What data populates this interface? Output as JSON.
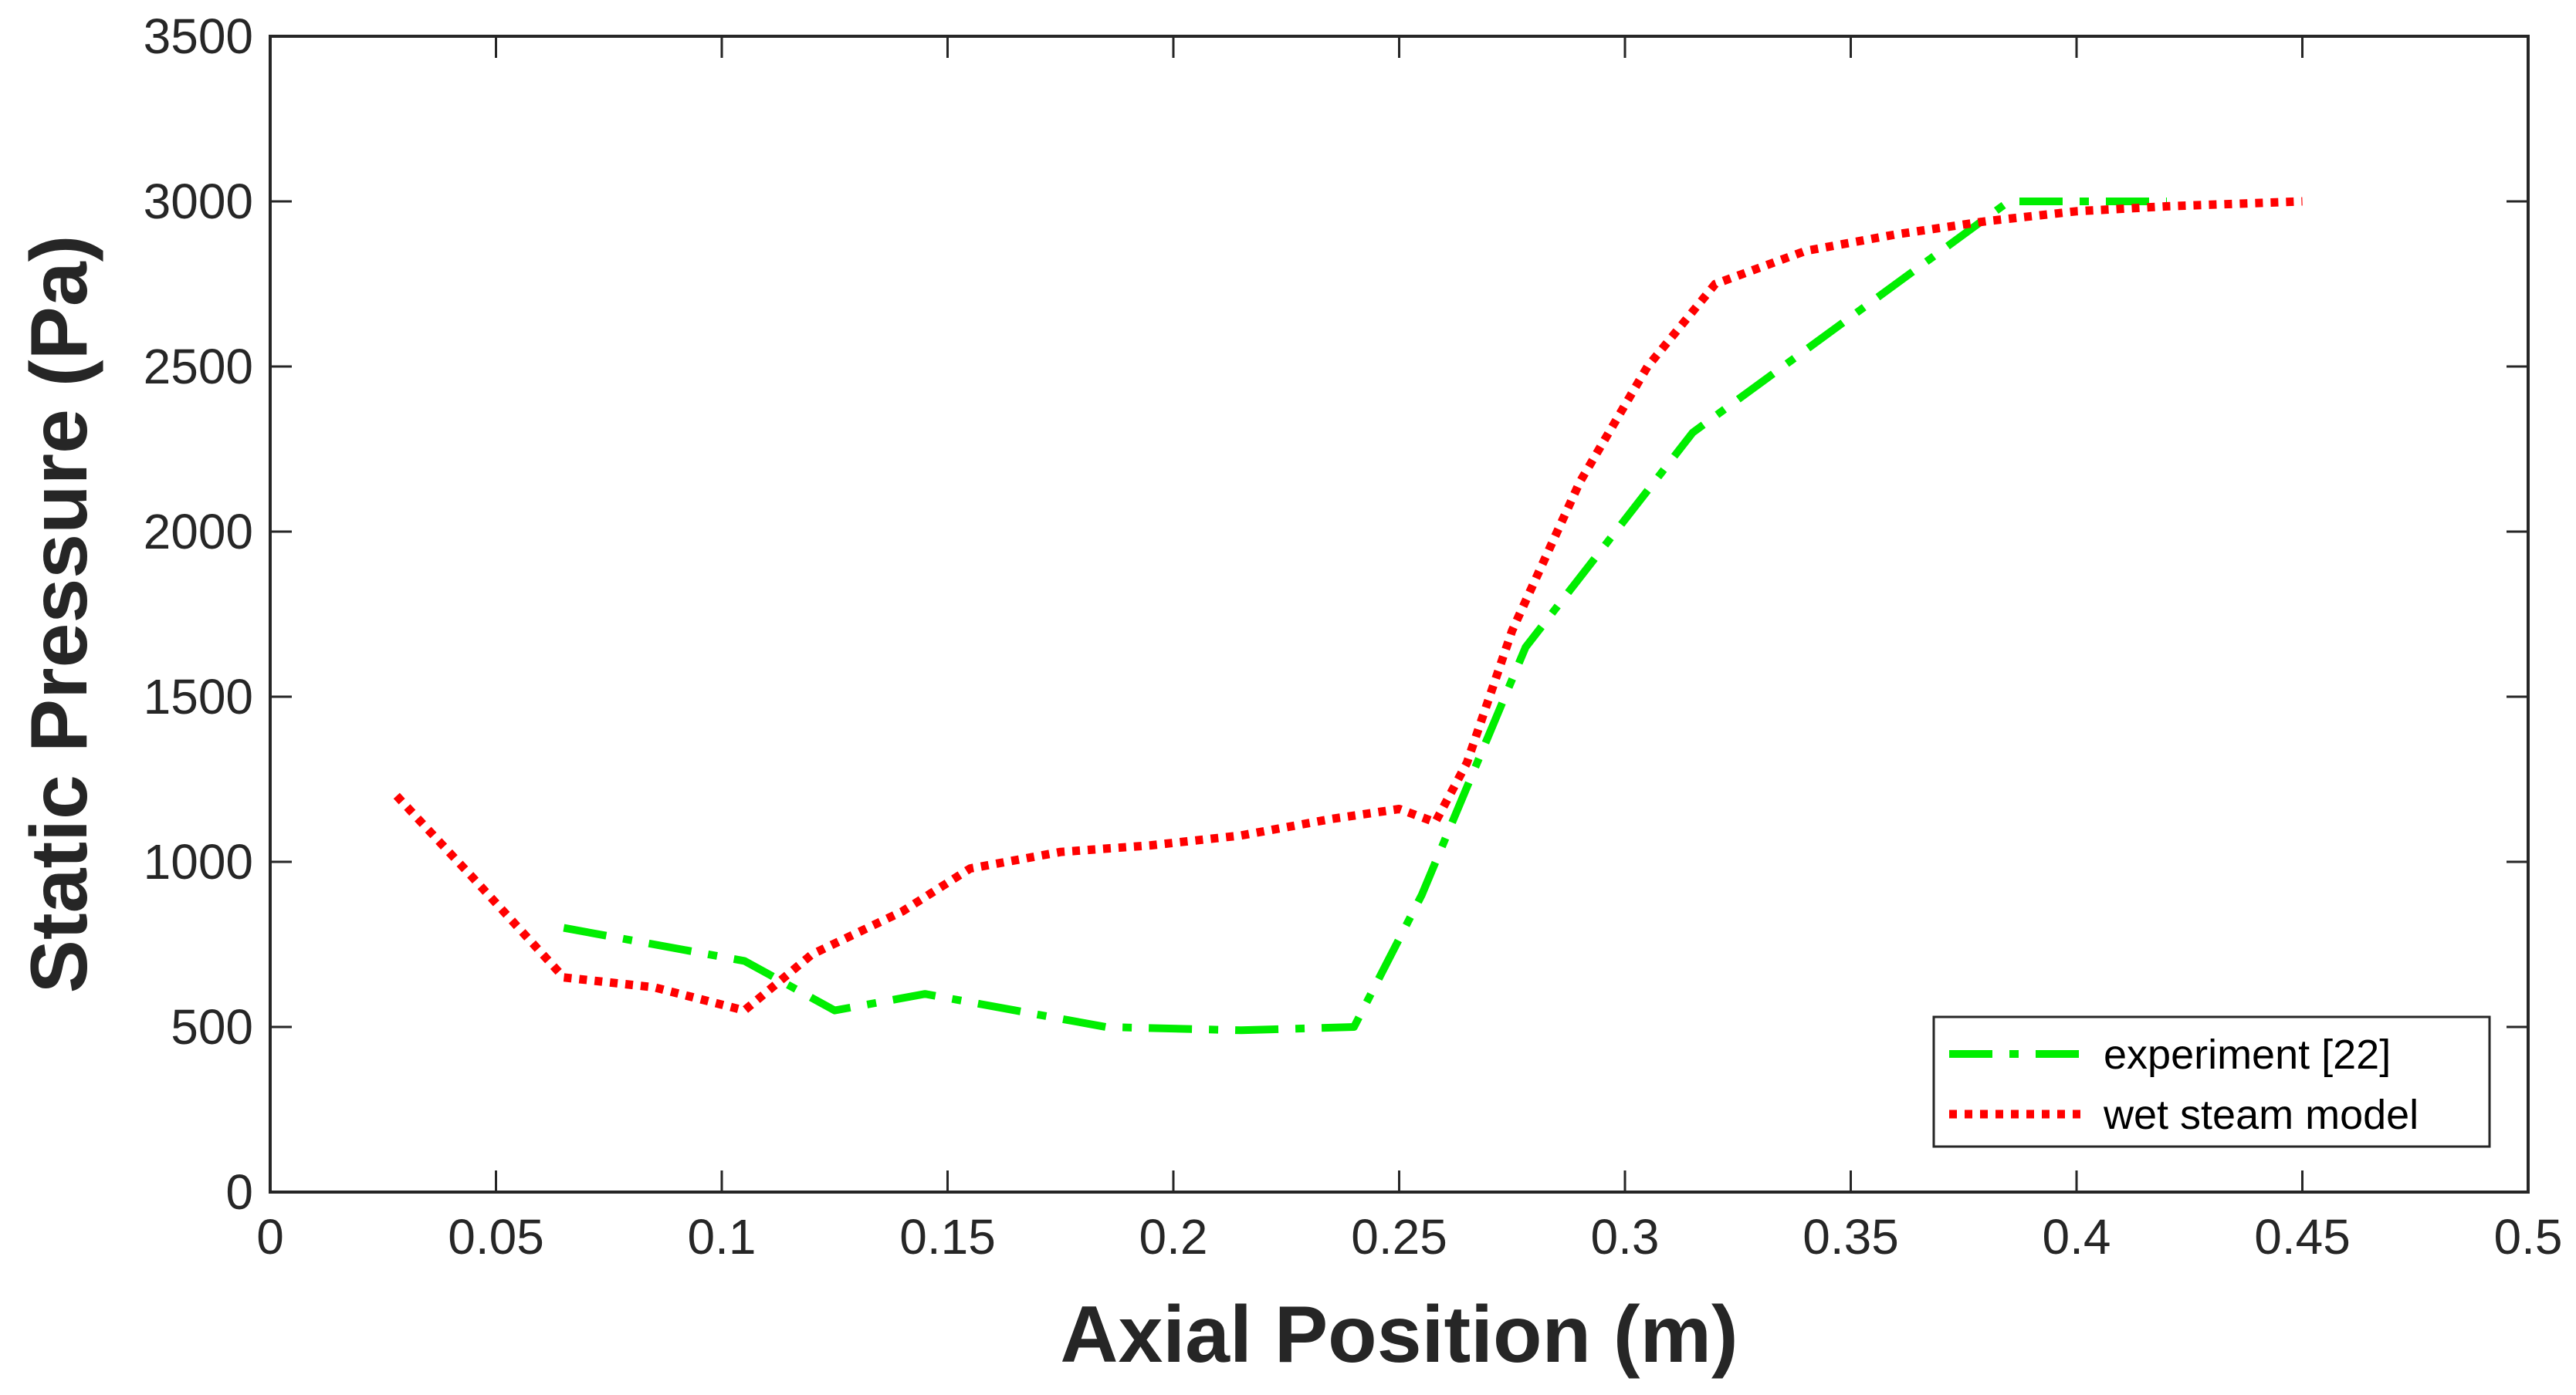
{
  "chart_data": {
    "type": "line",
    "title": "",
    "xlabel": "Axial Position (m)",
    "ylabel": "Static Pressure (Pa)",
    "xlim": [
      0,
      0.5
    ],
    "ylim": [
      0,
      3500
    ],
    "xticks": [
      0,
      0.05,
      0.1,
      0.15,
      0.2,
      0.25,
      0.3,
      0.35,
      0.4,
      0.45,
      0.5
    ],
    "xtick_labels": [
      "0",
      "0.05",
      "0.1",
      "0.15",
      "0.2",
      "0.25",
      "0.3",
      "0.35",
      "0.4",
      "0.45",
      "0.5"
    ],
    "yticks": [
      0,
      500,
      1000,
      1500,
      2000,
      2500,
      3000,
      3500
    ],
    "ytick_labels": [
      "0",
      "500",
      "1000",
      "1500",
      "2000",
      "2500",
      "3000",
      "3500"
    ],
    "grid": false,
    "legend_position": "bottom-right",
    "series": [
      {
        "name": "experiment [22]",
        "style": "dash-dot",
        "color": "#00ee00",
        "x": [
          0.065,
          0.105,
          0.125,
          0.145,
          0.165,
          0.185,
          0.215,
          0.24,
          0.255,
          0.278,
          0.315,
          0.35,
          0.385,
          0.42
        ],
        "y": [
          800,
          700,
          550,
          600,
          550,
          500,
          490,
          500,
          900,
          1650,
          2300,
          2650,
          3000,
          3000
        ]
      },
      {
        "name": "wet steam model",
        "style": "dotted",
        "color": "#ff0000",
        "x": [
          0.028,
          0.045,
          0.065,
          0.085,
          0.105,
          0.12,
          0.14,
          0.155,
          0.175,
          0.195,
          0.215,
          0.235,
          0.25,
          0.258,
          0.265,
          0.275,
          0.29,
          0.305,
          0.32,
          0.34,
          0.36,
          0.38,
          0.4,
          0.42,
          0.45
        ],
        "y": [
          1200,
          950,
          650,
          620,
          550,
          720,
          850,
          980,
          1030,
          1050,
          1080,
          1130,
          1160,
          1120,
          1300,
          1700,
          2150,
          2500,
          2750,
          2850,
          2900,
          2940,
          2970,
          2985,
          3000
        ]
      }
    ]
  }
}
